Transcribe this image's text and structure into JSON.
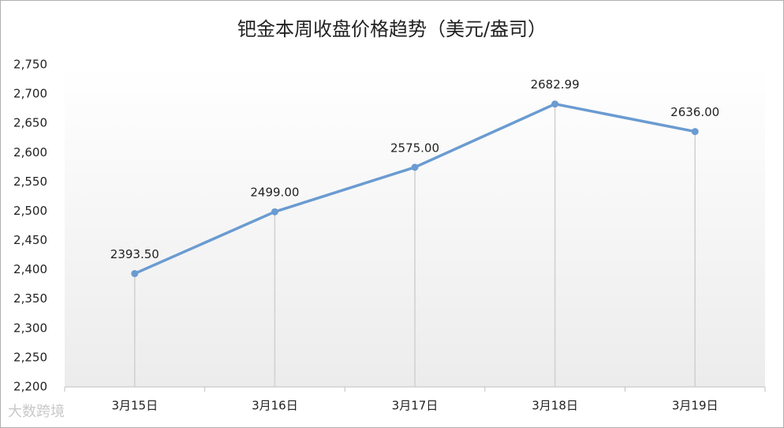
{
  "chart_data": {
    "type": "line",
    "title": "钯金本周收盘价格趋势（美元/盎司）",
    "categories": [
      "3月15日",
      "3月16日",
      "3月17日",
      "3月18日",
      "3月19日"
    ],
    "values": [
      2393.5,
      2499,
      2575,
      2682.99,
      2636
    ],
    "value_labels": [
      "2393.50",
      "2499.00",
      "2575.00",
      "2682.99",
      "2636.00"
    ],
    "color": "#6a9bd1",
    "ylim": [
      2200,
      2750
    ],
    "yticks": [
      {
        "value": 2200,
        "label": "2,200"
      },
      {
        "value": 2250,
        "label": "2,250"
      },
      {
        "value": 2300,
        "label": "2,300"
      },
      {
        "value": 2350,
        "label": "2,350"
      },
      {
        "value": 2400,
        "label": "2,400"
      },
      {
        "value": 2450,
        "label": "2,450"
      },
      {
        "value": 2500,
        "label": "2,500"
      },
      {
        "value": 2550,
        "label": "2,550"
      },
      {
        "value": 2600,
        "label": "2,600"
      },
      {
        "value": 2650,
        "label": "2,650"
      },
      {
        "value": 2700,
        "label": "2,700"
      },
      {
        "value": 2750,
        "label": "2,750"
      }
    ],
    "drop_lines": true,
    "watermark": "大数跨境"
  }
}
